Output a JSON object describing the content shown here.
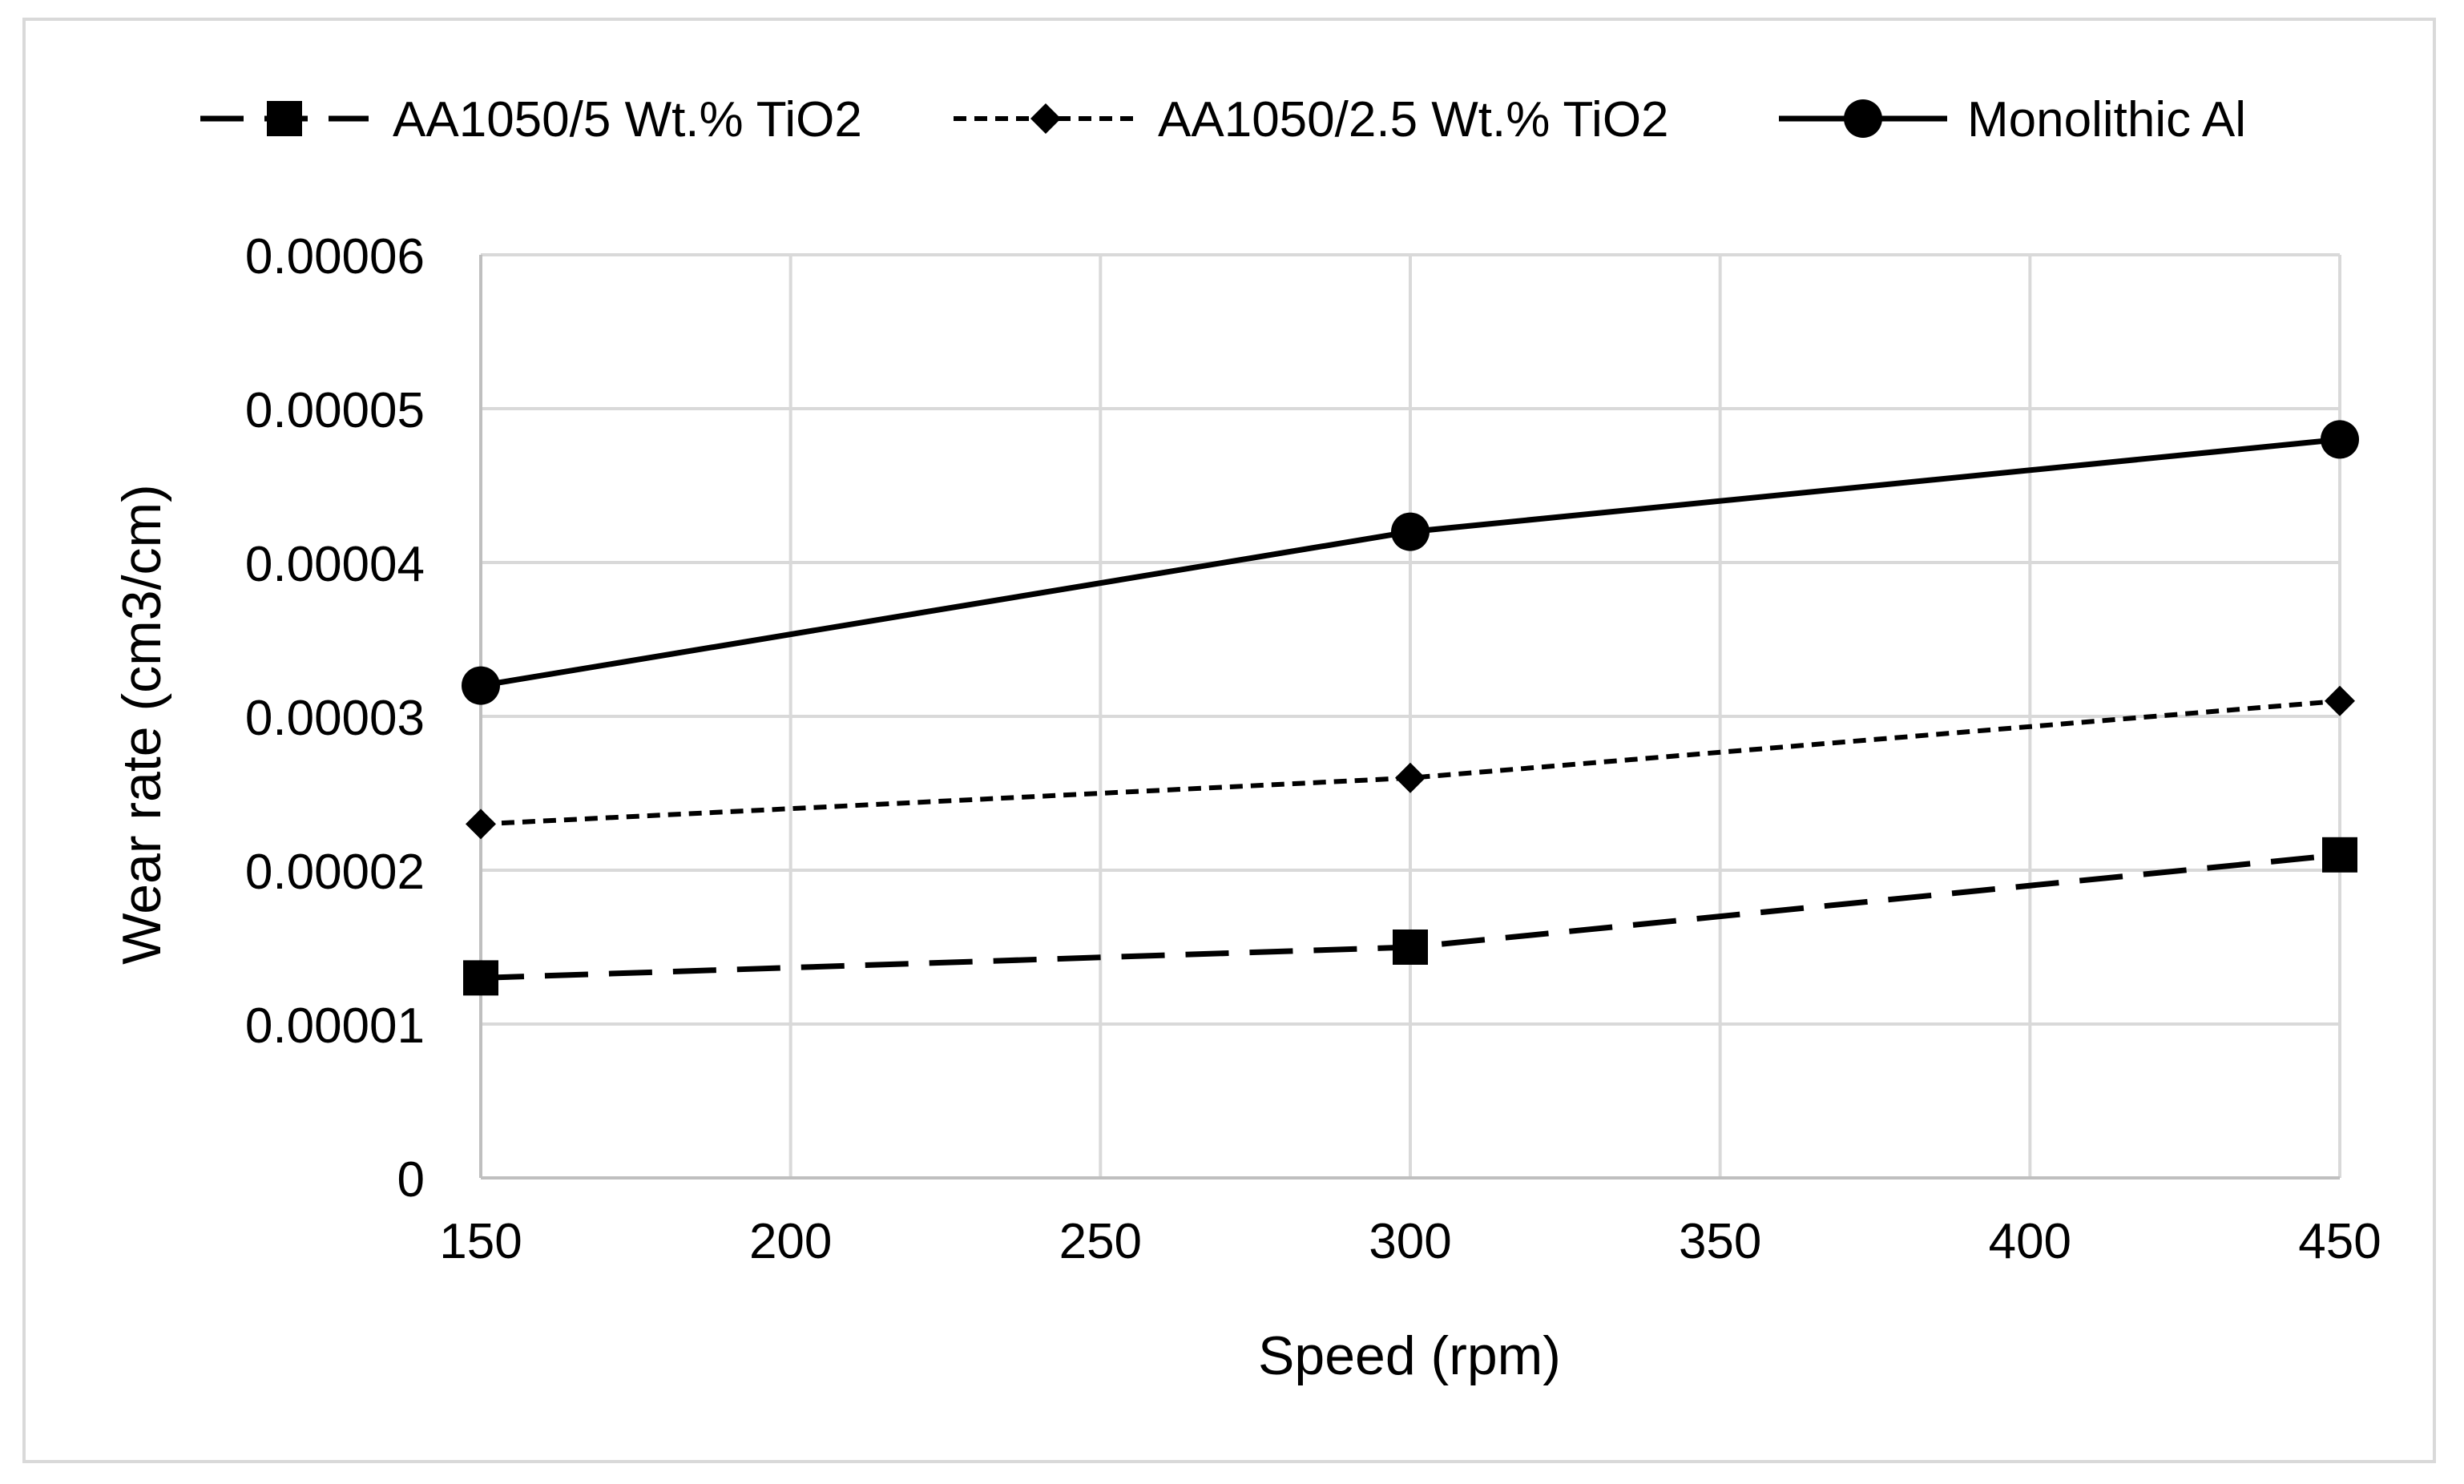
{
  "chart_data": {
    "type": "line",
    "title": "",
    "xlabel": "Speed (rpm)",
    "ylabel": "Wear rate (cm3/cm)",
    "xlim": [
      150,
      450
    ],
    "ylim": [
      0,
      6e-05
    ],
    "x_ticks": [
      150,
      200,
      250,
      300,
      350,
      400,
      450
    ],
    "y_ticks": [
      0,
      1e-05,
      2e-05,
      3e-05,
      4e-05,
      5e-05,
      6e-05
    ],
    "x_tick_labels": [
      "150",
      "200",
      "250",
      "300",
      "350",
      "400",
      "450"
    ],
    "y_tick_labels": [
      "0",
      "0.00001",
      "0.00002",
      "0.00003",
      "0.00004",
      "0.00005",
      "0.00006"
    ],
    "grid": true,
    "legend_position": "top",
    "x": [
      150,
      300,
      450
    ],
    "series": [
      {
        "name": "AA1050/5 Wt.% TiO2",
        "values": [
          1.3e-05,
          1.5e-05,
          2.1e-05
        ],
        "line_style": "long-dash",
        "marker": "square",
        "color": "#000000"
      },
      {
        "name": "AA1050/2.5 Wt.% TiO2",
        "values": [
          2.3e-05,
          2.6e-05,
          3.1e-05
        ],
        "line_style": "short-dash",
        "marker": "diamond",
        "color": "#000000"
      },
      {
        "name": "Monolithic Al",
        "values": [
          3.2e-05,
          4.2e-05,
          4.8e-05
        ],
        "line_style": "solid",
        "marker": "circle",
        "color": "#000000"
      }
    ]
  }
}
